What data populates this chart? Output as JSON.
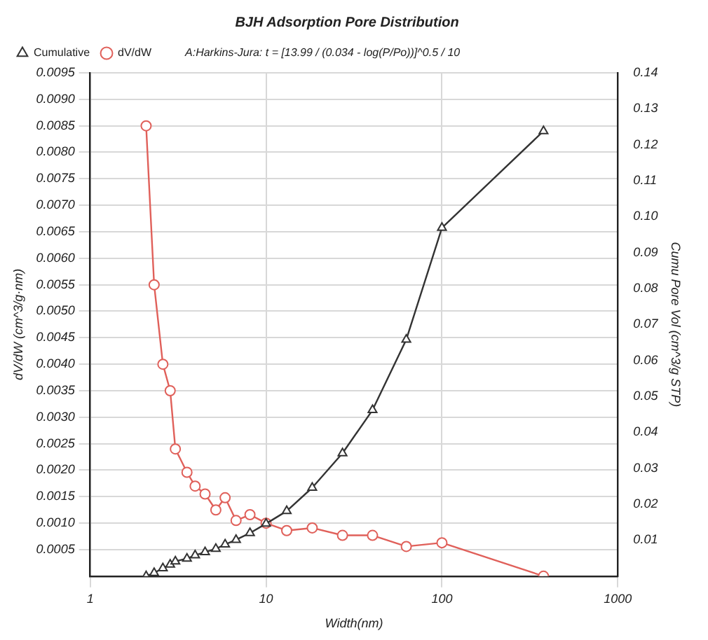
{
  "chart_data": {
    "type": "line",
    "title": "BJH Adsorption Pore Distribution",
    "xlabel": "Width(nm)",
    "ylabel": "dV/dW (cm^3/g·nm)",
    "y2label": "Cumu Pore Vol (cm^3/g STP)",
    "annotations": [
      "A:Harkins-Jura: t = [13.99 / (0.034 - log(P/Po))]^0.5 / 10"
    ],
    "x": [
      2.08,
      2.31,
      2.59,
      2.85,
      3.05,
      3.55,
      3.95,
      4.5,
      5.18,
      5.85,
      6.75,
      8.1,
      10,
      13.1,
      18.3,
      27.2,
      40.3,
      62.7,
      100,
      378
    ],
    "series": [
      {
        "name": "dV/dW",
        "color": "#e0605a",
        "marker": "circle",
        "values": [
          0.0085,
          0.0055,
          0.004,
          0.0035,
          0.0024,
          0.00196,
          0.0017,
          0.00155,
          0.00125,
          0.00148,
          0.00105,
          0.00116,
          0.001,
          0.00086,
          0.00091,
          0.00077,
          0.00077,
          0.00056,
          0.00063,
          0
        ]
      },
      {
        "name": "Cumulative",
        "color": "#333333",
        "marker": "triangle",
        "axis": "y2",
        "values": [
          0,
          0.0009,
          0.0022,
          0.0032,
          0.0041,
          0.0049,
          0.0058,
          0.0067,
          0.0076,
          0.0088,
          0.0101,
          0.012,
          0.0146,
          0.0181,
          0.0246,
          0.0342,
          0.0462,
          0.0658,
          0.0969,
          0.1238
        ]
      }
    ],
    "log": "x",
    "xlim": [
      1,
      1000
    ],
    "xticks": [
      1,
      10,
      100,
      1000
    ],
    "ylim": [
      0,
      0.0095
    ],
    "yticks": [
      {
        "value": 0.0005,
        "label": "0.0005"
      },
      {
        "value": 0.001,
        "label": "0.0010"
      },
      {
        "value": 0.0015,
        "label": "0.0015"
      },
      {
        "value": 0.002,
        "label": "0.0020"
      },
      {
        "value": 0.0025,
        "label": "0.0025"
      },
      {
        "value": 0.003,
        "label": "0.0030"
      },
      {
        "value": 0.0035,
        "label": "0.0035"
      },
      {
        "value": 0.004,
        "label": "0.0040"
      },
      {
        "value": 0.0045,
        "label": "0.0045"
      },
      {
        "value": 0.005,
        "label": "0.0050"
      },
      {
        "value": 0.0055,
        "label": "0.0055"
      },
      {
        "value": 0.006,
        "label": "0.0060"
      },
      {
        "value": 0.0065,
        "label": "0.0065"
      },
      {
        "value": 0.007,
        "label": "0.0070"
      },
      {
        "value": 0.0075,
        "label": "0.0075"
      },
      {
        "value": 0.008,
        "label": "0.0080"
      },
      {
        "value": 0.0085,
        "label": "0.0085"
      },
      {
        "value": 0.009,
        "label": "0.0090"
      },
      {
        "value": 0.0095,
        "label": "0.0095"
      }
    ],
    "y2lim": [
      0,
      0.14
    ],
    "y2ticks": [
      {
        "value": 0.01,
        "label": "0.01"
      },
      {
        "value": 0.02,
        "label": "0.02"
      },
      {
        "value": 0.03,
        "label": "0.03"
      },
      {
        "value": 0.04,
        "label": "0.04"
      },
      {
        "value": 0.05,
        "label": "0.05"
      },
      {
        "value": 0.06,
        "label": "0.06"
      },
      {
        "value": 0.07,
        "label": "0.07"
      },
      {
        "value": 0.08,
        "label": "0.08"
      },
      {
        "value": 0.09,
        "label": "0.09"
      },
      {
        "value": 0.1,
        "label": "0.10"
      },
      {
        "value": 0.11,
        "label": "0.11"
      },
      {
        "value": 0.12,
        "label": "0.12"
      },
      {
        "value": 0.13,
        "label": "0.13"
      },
      {
        "value": 0.14,
        "label": "0.14"
      }
    ],
    "grid": true,
    "legend": "top left",
    "line_style": "solid"
  }
}
